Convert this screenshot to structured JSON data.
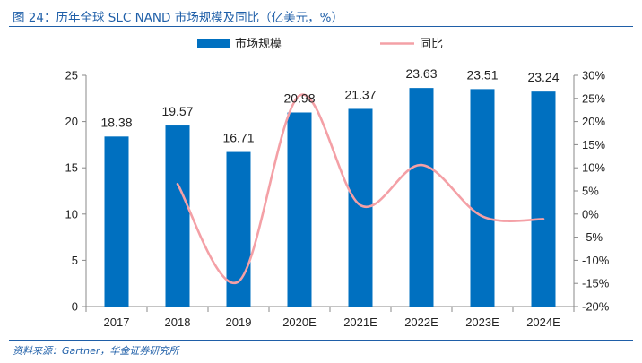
{
  "figure": {
    "title": "图 24：历年全球 SLC NAND 市场规模及同比（亿美元，%）",
    "source": "资料来源：Gartner，华金证券研究所"
  },
  "chart_data": {
    "type": "bar",
    "categories": [
      "2017",
      "2018",
      "2019",
      "2020E",
      "2021E",
      "2022E",
      "2023E",
      "2024E"
    ],
    "series": [
      {
        "name": "市场规模",
        "type": "bar",
        "axis": "left",
        "values": [
          18.38,
          19.57,
          16.71,
          20.98,
          21.37,
          23.63,
          23.51,
          23.24
        ],
        "labels": [
          "18.38",
          "19.57",
          "16.71",
          "20.98",
          "21.37",
          "23.63",
          "23.51",
          "23.24"
        ],
        "color": "#0070c0"
      },
      {
        "name": "同比",
        "type": "line",
        "axis": "right",
        "values": [
          null,
          6.5,
          -14.6,
          25.6,
          1.9,
          10.6,
          -0.5,
          -1.1
        ],
        "color": "#f4a0a6"
      }
    ],
    "y_left": {
      "lim": [
        0,
        25
      ],
      "ticks": [
        0,
        5,
        10,
        15,
        20,
        25
      ],
      "tick_labels": [
        "0",
        "5",
        "10",
        "15",
        "20",
        "25"
      ]
    },
    "y_right": {
      "lim": [
        -20,
        30
      ],
      "ticks": [
        -20,
        -15,
        -10,
        -5,
        0,
        5,
        10,
        15,
        20,
        25,
        30
      ],
      "tick_labels": [
        "-20%",
        "-15%",
        "-10%",
        "-5%",
        "0%",
        "5%",
        "10%",
        "15%",
        "20%",
        "25%",
        "30%"
      ]
    },
    "legend_position": "top",
    "grid": false
  }
}
